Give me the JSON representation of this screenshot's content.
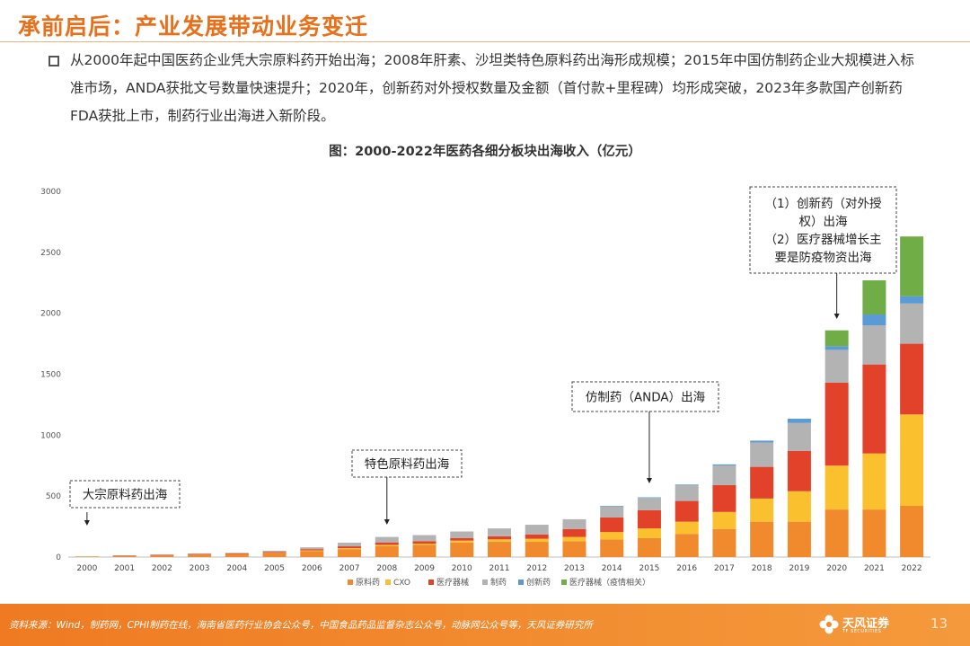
{
  "header": {
    "title": "承前启后：产业发展带动业务变迁"
  },
  "bullet": {
    "text": "从2000年起中国医药企业凭大宗原料药开始出海；2008年肝素、沙坦类特色原料药出海形成规模；2015年中国仿制药企业大规模进入标准市场，ANDA获批文号数量快速提升；2020年，创新药对外授权数量及金额（首付款+里程碑）均形成突破，2023年多款国产创新药FDA获批上市，制药行业出海进入新阶段。"
  },
  "chart_data": {
    "type": "bar",
    "stacked": true,
    "title": "图：2000-2022年医药各细分板块出海收入（亿元）",
    "xlabel": "",
    "ylabel": "",
    "ylim": [
      0,
      3000
    ],
    "yticks": [
      0,
      500,
      1000,
      1500,
      2000,
      2500,
      3000
    ],
    "categories": [
      "2000",
      "2001",
      "2002",
      "2003",
      "2004",
      "2005",
      "2006",
      "2007",
      "2008",
      "2009",
      "2010",
      "2011",
      "2012",
      "2013",
      "2014",
      "2015",
      "2016",
      "2017",
      "2018",
      "2019",
      "2020",
      "2021",
      "2022"
    ],
    "series": [
      {
        "name": "原料药",
        "color": "#f08a2c",
        "values": [
          5,
          10,
          15,
          20,
          25,
          35,
          50,
          65,
          90,
          100,
          120,
          125,
          125,
          130,
          145,
          155,
          190,
          230,
          290,
          290,
          390,
          390,
          420
        ]
      },
      {
        "name": "CXO",
        "color": "#fbc02d",
        "values": [
          0,
          0,
          0,
          0,
          0,
          0,
          5,
          8,
          10,
          10,
          15,
          20,
          25,
          35,
          60,
          80,
          100,
          140,
          190,
          250,
          360,
          460,
          750
        ]
      },
      {
        "name": "医疗器械",
        "color": "#e2422a",
        "values": [
          0,
          2,
          3,
          5,
          5,
          7,
          10,
          15,
          20,
          20,
          20,
          25,
          35,
          65,
          120,
          150,
          170,
          220,
          260,
          330,
          680,
          730,
          580
        ]
      },
      {
        "name": "制药",
        "color": "#b3b3b3",
        "values": [
          0,
          2,
          3,
          5,
          5,
          10,
          15,
          30,
          45,
          50,
          55,
          65,
          80,
          80,
          90,
          100,
          130,
          160,
          200,
          230,
          270,
          320,
          330
        ]
      },
      {
        "name": "创新药",
        "color": "#5b9bd5",
        "values": [
          0,
          0,
          0,
          0,
          0,
          0,
          0,
          0,
          0,
          0,
          0,
          0,
          0,
          0,
          5,
          5,
          5,
          10,
          15,
          35,
          30,
          90,
          60
        ]
      },
      {
        "name": "医疗器械（疫情相关）",
        "color": "#70ad47",
        "values": [
          0,
          0,
          0,
          0,
          0,
          0,
          0,
          0,
          0,
          0,
          0,
          0,
          0,
          0,
          0,
          0,
          0,
          0,
          0,
          0,
          130,
          280,
          490
        ]
      }
    ],
    "legend_position": "bottom-center",
    "annotations": [
      {
        "text": [
          "大宗原料药出海"
        ],
        "year": "2000"
      },
      {
        "text": [
          "特色原料药出海"
        ],
        "year": "2008"
      },
      {
        "text": [
          "仿制药（ANDA）出海"
        ],
        "year": "2015"
      },
      {
        "text": [
          "（1）创新药（对外授",
          "权）出海",
          "（2）医疗器械增长主",
          "要是防疫物资出海"
        ],
        "year": "2020"
      }
    ]
  },
  "footer": {
    "source": "资料来源：Wind，制药网，CPHI制药在线，海南省医药行业协会公众号，中国食品药品监督杂志公众号，动脉网公众号等，天风证券研究所",
    "logo_text": "天风证券",
    "logo_sub": "TF SECURITIES",
    "page": "13"
  },
  "colors": {
    "accent": "#e8701a",
    "footer_bg": "#f08a2c"
  }
}
